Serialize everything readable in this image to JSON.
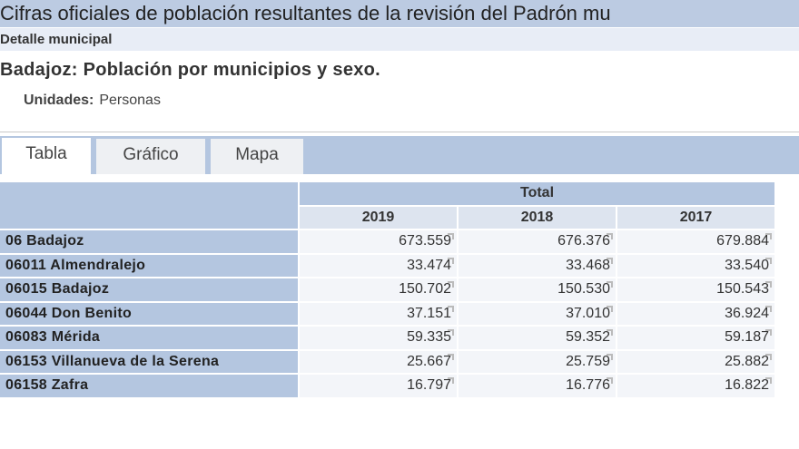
{
  "title": "Cifras oficiales de población resultantes de la revisión del Padrón mu",
  "subtitle": "Detalle municipal",
  "heading": "Badajoz: Población por municipios y sexo.",
  "units": {
    "label": "Unidades:",
    "value": "Personas"
  },
  "tabs": [
    {
      "label": "Tabla",
      "active": true
    },
    {
      "label": "Gráfico"
    },
    {
      "label": "Mapa"
    }
  ],
  "table": {
    "group_header": "Total",
    "columns": [
      "2019",
      "2018",
      "2017"
    ],
    "rows": [
      {
        "label": "06 Badajoz",
        "values": [
          "673.559",
          "676.376",
          "679.884"
        ]
      },
      {
        "label": "06011 Almendralejo",
        "values": [
          "33.474",
          "33.468",
          "33.540"
        ]
      },
      {
        "label": "06015 Badajoz",
        "values": [
          "150.702",
          "150.530",
          "150.543"
        ]
      },
      {
        "label": "06044 Don Benito",
        "values": [
          "37.151",
          "37.010",
          "36.924"
        ]
      },
      {
        "label": "06083 Mérida",
        "values": [
          "59.335",
          "59.352",
          "59.187"
        ]
      },
      {
        "label": "06153 Villanueva de la Serena",
        "values": [
          "25.667",
          "25.759",
          "25.882"
        ]
      },
      {
        "label": "06158 Zafra",
        "values": [
          "16.797",
          "16.776",
          "16.822"
        ]
      }
    ]
  }
}
